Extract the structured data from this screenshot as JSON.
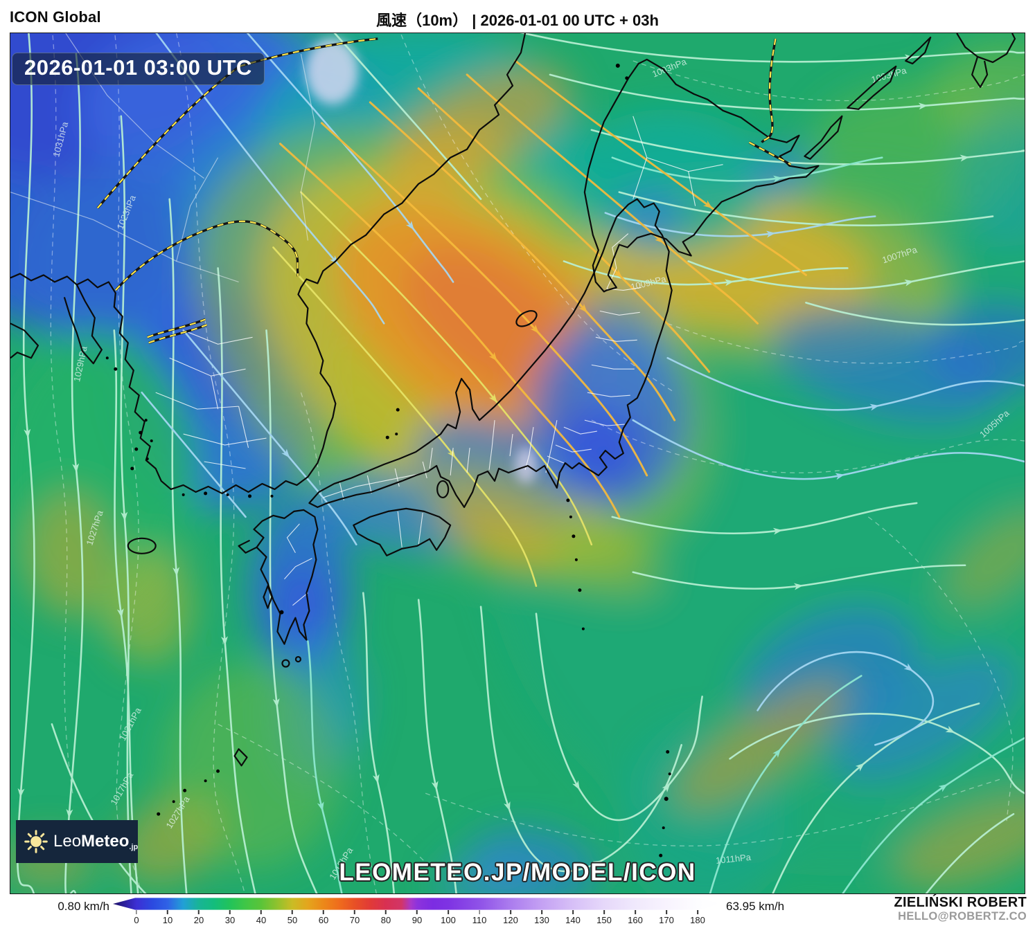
{
  "header": {
    "model_label": "ICON Global",
    "title": "風速（10m） | 2026-01-01 00 UTC + 03h"
  },
  "map": {
    "timestamp": "2026-01-01 03:00 UTC",
    "watermark": "LEOMETEO.JP/MODEL/ICON",
    "logo": {
      "leo": "Leo",
      "meteo": "Meteo",
      "tld": ".jp"
    },
    "isobar_labels": [
      "1031hPa",
      "1023hPa",
      "1029hPa",
      "1027hPa",
      "1021hPa",
      "1017hPa",
      "1027hPa",
      "1015hPa",
      "1011hPa",
      "1009hPa",
      "1007hPa",
      "1005hPa",
      "1003hPa",
      "1003hPa"
    ]
  },
  "legend": {
    "min_label": "0.80 km/h",
    "max_label": "63.95 km/h",
    "unit": "km/h",
    "ticks": [
      0,
      10,
      20,
      30,
      40,
      50,
      60,
      70,
      80,
      90,
      100,
      110,
      120,
      130,
      140,
      150,
      160,
      170,
      180
    ]
  },
  "color_scale": [
    {
      "v": 0,
      "c": "#3c2fd4"
    },
    {
      "v": 5,
      "c": "#2b49e0"
    },
    {
      "v": 10,
      "c": "#2f62e6"
    },
    {
      "v": 15,
      "c": "#21a0d6"
    },
    {
      "v": 20,
      "c": "#18b496"
    },
    {
      "v": 25,
      "c": "#14bd7c"
    },
    {
      "v": 30,
      "c": "#22c35a"
    },
    {
      "v": 35,
      "c": "#40c646"
    },
    {
      "v": 40,
      "c": "#5ac439"
    },
    {
      "v": 45,
      "c": "#8ec22e"
    },
    {
      "v": 50,
      "c": "#cabc25"
    },
    {
      "v": 55,
      "c": "#e4a51d"
    },
    {
      "v": 60,
      "c": "#ec8819"
    },
    {
      "v": 65,
      "c": "#ef6c1d"
    },
    {
      "v": 70,
      "c": "#e85026"
    },
    {
      "v": 75,
      "c": "#e13a37"
    },
    {
      "v": 80,
      "c": "#d83052"
    },
    {
      "v": 85,
      "c": "#d23567"
    },
    {
      "v": 88,
      "c": "#a938c9"
    },
    {
      "v": 90,
      "c": "#8d33dc"
    },
    {
      "v": 95,
      "c": "#7c2ce2"
    },
    {
      "v": 100,
      "c": "#7e33e3"
    },
    {
      "v": 110,
      "c": "#8f52e8"
    },
    {
      "v": 120,
      "c": "#ab7cee"
    },
    {
      "v": 130,
      "c": "#c4a1f3"
    },
    {
      "v": 140,
      "c": "#d7c0f7"
    },
    {
      "v": 150,
      "c": "#e6d8fa"
    },
    {
      "v": 160,
      "c": "#f0e9fc"
    },
    {
      "v": 170,
      "c": "#f8f3fe"
    },
    {
      "v": 180,
      "c": "#fdfdff"
    }
  ],
  "credit": {
    "name": "ZIELIŃSKI ROBERT",
    "email": "HELLO@ROBERTZ.CO"
  }
}
